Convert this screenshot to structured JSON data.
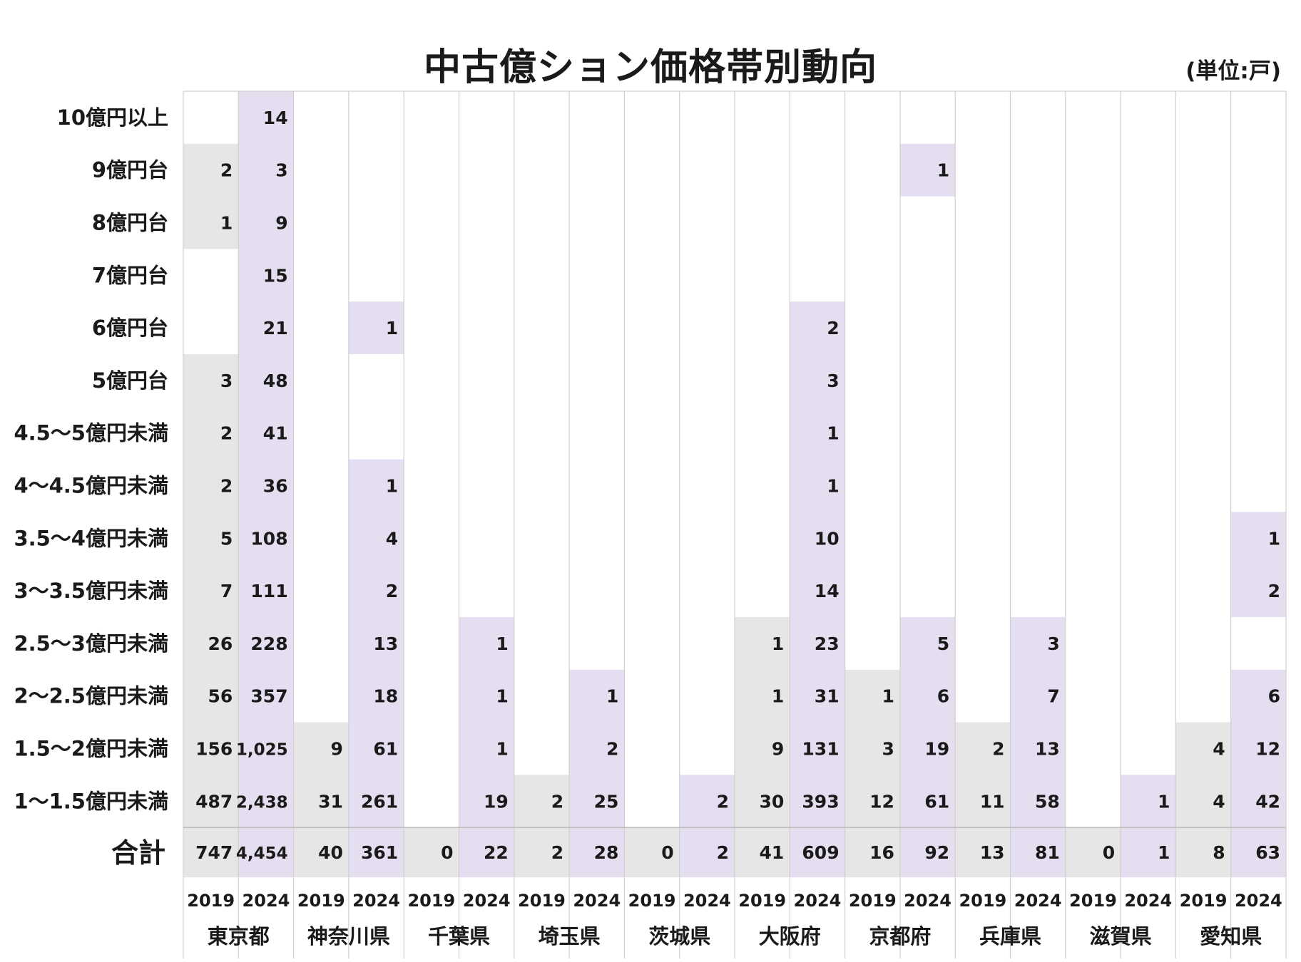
{
  "chart_data": {
    "type": "table",
    "title": "中古億ション価格帯別動向",
    "unit_note": "(単位:戸)",
    "years": [
      "2019",
      "2024"
    ],
    "row_labels": [
      "10億円以上",
      "9億円台",
      "8億円台",
      "7億円台",
      "6億円台",
      "5億円台",
      "4.5〜5億円未満",
      "4〜4.5億円未満",
      "3.5〜4億円未満",
      "3〜3.5億円未満",
      "2.5〜3億円未満",
      "2〜2.5億円未満",
      "1.5〜2億円未満",
      "1〜1.5億円未満"
    ],
    "total_label": "合計",
    "colors": {
      "y2019_fill": "#e6e6e6",
      "y2024_fill": "#e4def0",
      "grid": "#cfcfcf"
    },
    "prefectures": [
      {
        "name": "東京都",
        "y2019": [
          "",
          "2",
          "1",
          "",
          "",
          "3",
          "2",
          "2",
          "5",
          "7",
          "26",
          "56",
          "156",
          "487"
        ],
        "y2024": [
          "14",
          "3",
          "9",
          "15",
          "21",
          "48",
          "41",
          "36",
          "108",
          "111",
          "228",
          "357",
          "1,025",
          "2,438"
        ],
        "total2019": "747",
        "total2024": "4,454"
      },
      {
        "name": "神奈川県",
        "y2019": [
          "",
          "",
          "",
          "",
          "",
          "",
          "",
          "",
          "",
          "",
          "",
          "",
          "9",
          "31"
        ],
        "y2024": [
          "",
          "",
          "",
          "",
          "1",
          "",
          "",
          "1",
          "4",
          "2",
          "13",
          "18",
          "61",
          "261"
        ],
        "total2019": "40",
        "total2024": "361"
      },
      {
        "name": "千葉県",
        "y2019": [
          "",
          "",
          "",
          "",
          "",
          "",
          "",
          "",
          "",
          "",
          "",
          "",
          "",
          ""
        ],
        "y2024": [
          "",
          "",
          "",
          "",
          "",
          "",
          "",
          "",
          "",
          "",
          "1",
          "1",
          "1",
          "19"
        ],
        "total2019": "0",
        "total2024": "22"
      },
      {
        "name": "埼玉県",
        "y2019": [
          "",
          "",
          "",
          "",
          "",
          "",
          "",
          "",
          "",
          "",
          "",
          "",
          "",
          "2"
        ],
        "y2024": [
          "",
          "",
          "",
          "",
          "",
          "",
          "",
          "",
          "",
          "",
          "",
          "1",
          "2",
          "25"
        ],
        "total2019": "2",
        "total2024": "28"
      },
      {
        "name": "茨城県",
        "y2019": [
          "",
          "",
          "",
          "",
          "",
          "",
          "",
          "",
          "",
          "",
          "",
          "",
          "",
          ""
        ],
        "y2024": [
          "",
          "",
          "",
          "",
          "",
          "",
          "",
          "",
          "",
          "",
          "",
          "",
          "",
          "2"
        ],
        "total2019": "0",
        "total2024": "2"
      },
      {
        "name": "大阪府",
        "y2019": [
          "",
          "",
          "",
          "",
          "",
          "",
          "",
          "",
          "",
          "",
          "1",
          "1",
          "9",
          "30"
        ],
        "y2024": [
          "",
          "",
          "",
          "",
          "2",
          "3",
          "1",
          "1",
          "10",
          "14",
          "23",
          "31",
          "131",
          "393"
        ],
        "total2019": "41",
        "total2024": "609"
      },
      {
        "name": "京都府",
        "y2019": [
          "",
          "",
          "",
          "",
          "",
          "",
          "",
          "",
          "",
          "",
          "",
          "1",
          "3",
          "12"
        ],
        "y2024": [
          "",
          "1",
          "",
          "",
          "",
          "",
          "",
          "",
          "",
          "",
          "5",
          "6",
          "19",
          "61"
        ],
        "total2019": "16",
        "total2024": "92"
      },
      {
        "name": "兵庫県",
        "y2019": [
          "",
          "",
          "",
          "",
          "",
          "",
          "",
          "",
          "",
          "",
          "",
          "",
          "2",
          "11"
        ],
        "y2024": [
          "",
          "",
          "",
          "",
          "",
          "",
          "",
          "",
          "",
          "",
          "3",
          "7",
          "13",
          "58"
        ],
        "total2019": "13",
        "total2024": "81"
      },
      {
        "name": "滋賀県",
        "y2019": [
          "",
          "",
          "",
          "",
          "",
          "",
          "",
          "",
          "",
          "",
          "",
          "",
          "",
          ""
        ],
        "y2024": [
          "",
          "",
          "",
          "",
          "",
          "",
          "",
          "",
          "",
          "",
          "",
          "",
          "",
          "1"
        ],
        "total2019": "0",
        "total2024": "1"
      },
      {
        "name": "愛知県",
        "y2019": [
          "",
          "",
          "",
          "",
          "",
          "",
          "",
          "",
          "",
          "",
          "",
          "",
          "4",
          "4"
        ],
        "y2024": [
          "",
          "",
          "",
          "",
          "",
          "",
          "",
          "",
          "1",
          "2",
          "",
          "6",
          "12",
          "42"
        ],
        "total2019": "8",
        "total2024": "63"
      }
    ]
  }
}
